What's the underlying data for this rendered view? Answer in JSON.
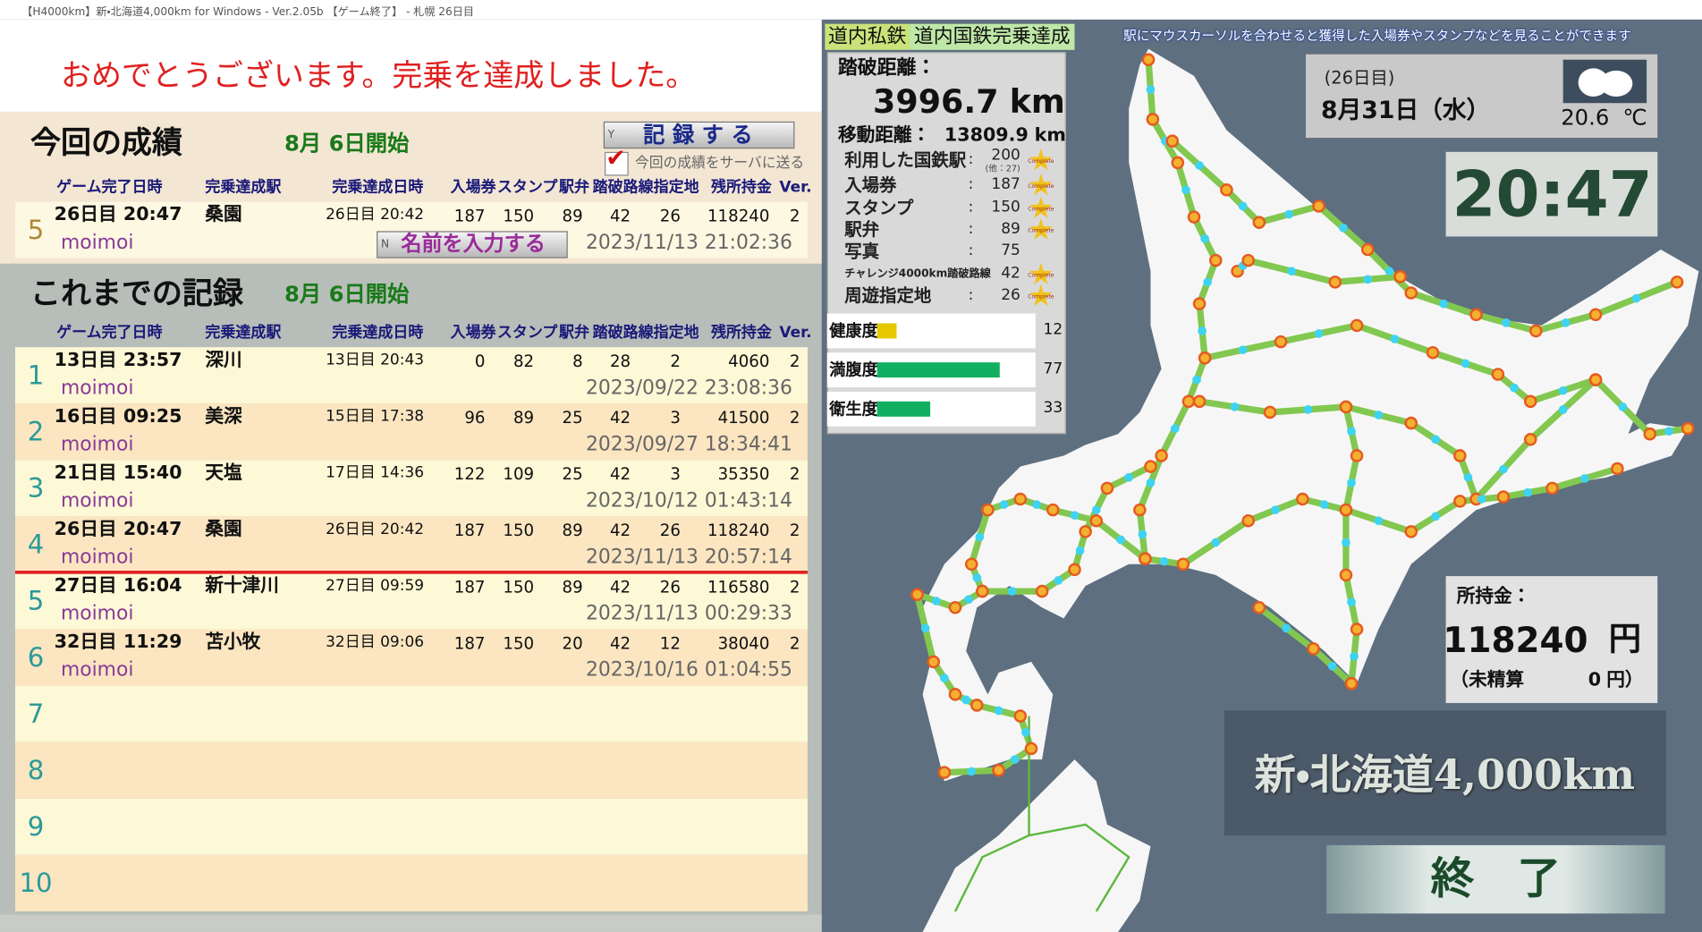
{
  "window_title": "【H4000km】新・北海道4,000km for Windows - Ver.2.05b 【ゲーム終了】 - 札幌 26日目",
  "congrats": "おめでとうございます。完乗を達成しました。",
  "columns": [
    "ゲーム完了日時",
    "完乗達成駅",
    "完乗達成日時",
    "入場券",
    "スタンプ",
    "駅弁",
    "踏破路線",
    "指定地",
    "残所持金",
    "Ver."
  ],
  "current": {
    "title": "今回の成績",
    "start": "8月 6日開始",
    "record_key": "Y",
    "record_button": "記 録 す る",
    "send_to_server": "今回の成績をサーバに送る",
    "send_checked": true,
    "name_key": "N",
    "name_button": "名前を入力する",
    "row": {
      "rank": 5,
      "finished": "26日目 20:47",
      "station": "桑園",
      "achieved": "26日目 20:42",
      "tickets": 187,
      "stamps": 150,
      "ekiben": 89,
      "routes": 42,
      "spots": 26,
      "money": 118240,
      "ver": 2,
      "name": "moimoi",
      "recorded": "2023/11/13 21:02:36"
    }
  },
  "history": {
    "title": "これまでの記録",
    "start": "8月 6日開始",
    "rows": [
      {
        "rank": 1,
        "finished": "13日目 23:57",
        "station": "深川",
        "achieved": "13日目 20:43",
        "tickets": 0,
        "stamps": 82,
        "ekiben": 8,
        "routes": 28,
        "spots": 2,
        "money": 4060,
        "ver": 2,
        "name": "moimoi",
        "recorded": "2023/09/22 23:08:36"
      },
      {
        "rank": 2,
        "finished": "16日目 09:25",
        "station": "美深",
        "achieved": "15日目 17:38",
        "tickets": 96,
        "stamps": 89,
        "ekiben": 25,
        "routes": 42,
        "spots": 3,
        "money": 41500,
        "ver": 2,
        "name": "moimoi",
        "recorded": "2023/09/27 18:34:41"
      },
      {
        "rank": 3,
        "finished": "21日目 15:40",
        "station": "天塩",
        "achieved": "17日目 14:36",
        "tickets": 122,
        "stamps": 109,
        "ekiben": 25,
        "routes": 42,
        "spots": 3,
        "money": 35350,
        "ver": 2,
        "name": "moimoi",
        "recorded": "2023/10/12 01:43:14"
      },
      {
        "rank": 4,
        "finished": "26日目 20:47",
        "station": "桑園",
        "achieved": "26日目 20:42",
        "tickets": 187,
        "stamps": 150,
        "ekiben": 89,
        "routes": 42,
        "spots": 26,
        "money": 118240,
        "ver": 2,
        "name": "moimoi",
        "recorded": "2023/11/13 20:57:14"
      },
      {
        "rank": 5,
        "finished": "27日目 16:04",
        "station": "新十津川",
        "achieved": "27日目 09:59",
        "tickets": 187,
        "stamps": 150,
        "ekiben": 89,
        "routes": 42,
        "spots": 26,
        "money": 116580,
        "ver": 2,
        "name": "moimoi",
        "recorded": "2023/11/13 00:29:33"
      },
      {
        "rank": 6,
        "finished": "32日目 11:29",
        "station": "苫小牧",
        "achieved": "32日目 09:06",
        "tickets": 187,
        "stamps": 150,
        "ekiben": 20,
        "routes": 42,
        "spots": 12,
        "money": 38040,
        "ver": 2,
        "name": "moimoi",
        "recorded": "2023/10/16 01:04:55"
      },
      {
        "rank": 7
      },
      {
        "rank": 8
      },
      {
        "rank": 9
      },
      {
        "rank": 10
      }
    ]
  },
  "status": {
    "railways": [
      "道内私鉄",
      "道内国鉄完乗達成"
    ],
    "notice": "駅にマウスカーソルを合わせると獲得した入場券やスタンプなどを見ることができます",
    "distance_label": "踏破距離：",
    "distance": 3996.7,
    "distance_unit": "km",
    "travel_label": "移動距離：",
    "travel": 13809.9,
    "travel_unit": "km",
    "separator": ":",
    "complete_badge": "Complete",
    "counts": [
      {
        "label": "利用した国鉄駅",
        "value": 200,
        "note": "(他：27)"
      },
      {
        "label": "入場券",
        "value": 187
      },
      {
        "label": "スタンプ",
        "value": 150
      },
      {
        "label": "駅弁",
        "value": 89
      },
      {
        "label": "写真",
        "value": 75
      },
      {
        "label": "チャレンジ4000km踏破路線",
        "value": 42
      },
      {
        "label": "周遊指定地",
        "value": 26
      }
    ],
    "complete": [
      true,
      true,
      true,
      true,
      false,
      true,
      true
    ],
    "gauges": [
      {
        "label": "健康度",
        "value": 12,
        "color": "#e6c800"
      },
      {
        "label": "満腹度",
        "value": 77,
        "color": "#10b060"
      },
      {
        "label": "衛生度",
        "value": 33,
        "color": "#10b060"
      }
    ]
  },
  "clock": {
    "day": "(26日目)",
    "date": "8月31日（水）",
    "temperature": 20.6,
    "temperature_unit": "℃",
    "time": "20:47"
  },
  "wallet": {
    "label": "所持金：",
    "amount": 118240,
    "unit": "円",
    "unsettled_label": "（未精算",
    "unsettled": 0,
    "unsettled_unit": "円）"
  },
  "logo": "新・北海道4,000km",
  "exit_button": "終　了"
}
